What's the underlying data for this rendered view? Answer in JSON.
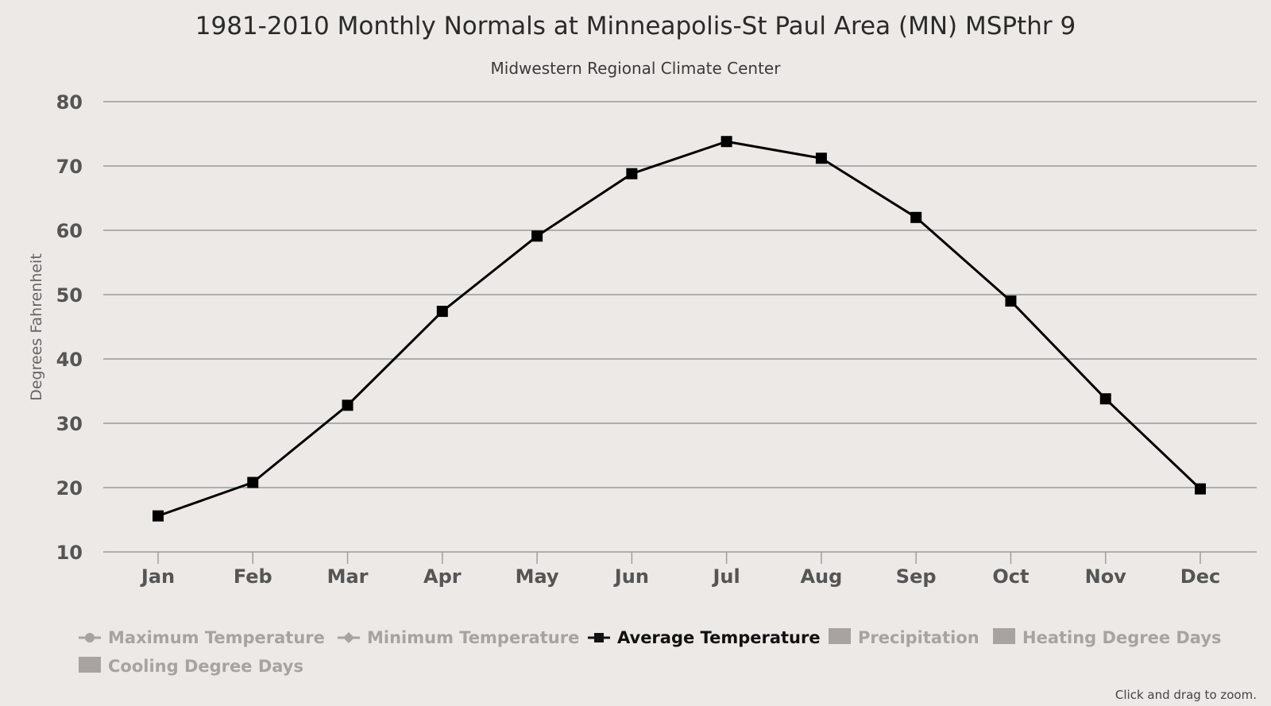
{
  "chart_data": {
    "type": "line",
    "title": "1981-2010 Monthly Normals at Minneapolis-St Paul Area (MN) MSPthr 9",
    "subtitle": "Midwestern Regional Climate Center",
    "ylabel": "Degrees Fahrenheit",
    "xlabel": "",
    "categories": [
      "Jan",
      "Feb",
      "Mar",
      "Apr",
      "May",
      "Jun",
      "Jul",
      "Aug",
      "Sep",
      "Oct",
      "Nov",
      "Dec"
    ],
    "yticks": [
      "10",
      "20",
      "30",
      "40",
      "50",
      "60",
      "70",
      "80"
    ],
    "ylim": [
      10,
      80
    ],
    "grid": true,
    "legend_position": "bottom",
    "series": [
      {
        "name": "Average Temperature",
        "color": "#000000",
        "marker": "square",
        "values": [
          15.6,
          20.8,
          32.8,
          47.4,
          59.1,
          68.8,
          73.8,
          71.2,
          62.0,
          49.0,
          33.8,
          19.8
        ]
      }
    ],
    "legend": [
      {
        "label": "Maximum Temperature",
        "symbol": "line-circle",
        "active": false
      },
      {
        "label": "Minimum Temperature",
        "symbol": "line-diamond",
        "active": false
      },
      {
        "label": "Average Temperature",
        "symbol": "line-square",
        "active": true
      },
      {
        "label": "Precipitation",
        "symbol": "box",
        "active": false
      },
      {
        "label": "Heating Degree Days",
        "symbol": "box",
        "active": false
      },
      {
        "label": "Cooling Degree Days",
        "symbol": "box",
        "active": false
      }
    ],
    "credits": "Click and drag to zoom."
  },
  "colors": {
    "background": "#ece9e6",
    "gridline": "#9a9a9a",
    "series": "#000000",
    "legend_inactive": "#a8a3a0",
    "legend_active": "#111111"
  }
}
